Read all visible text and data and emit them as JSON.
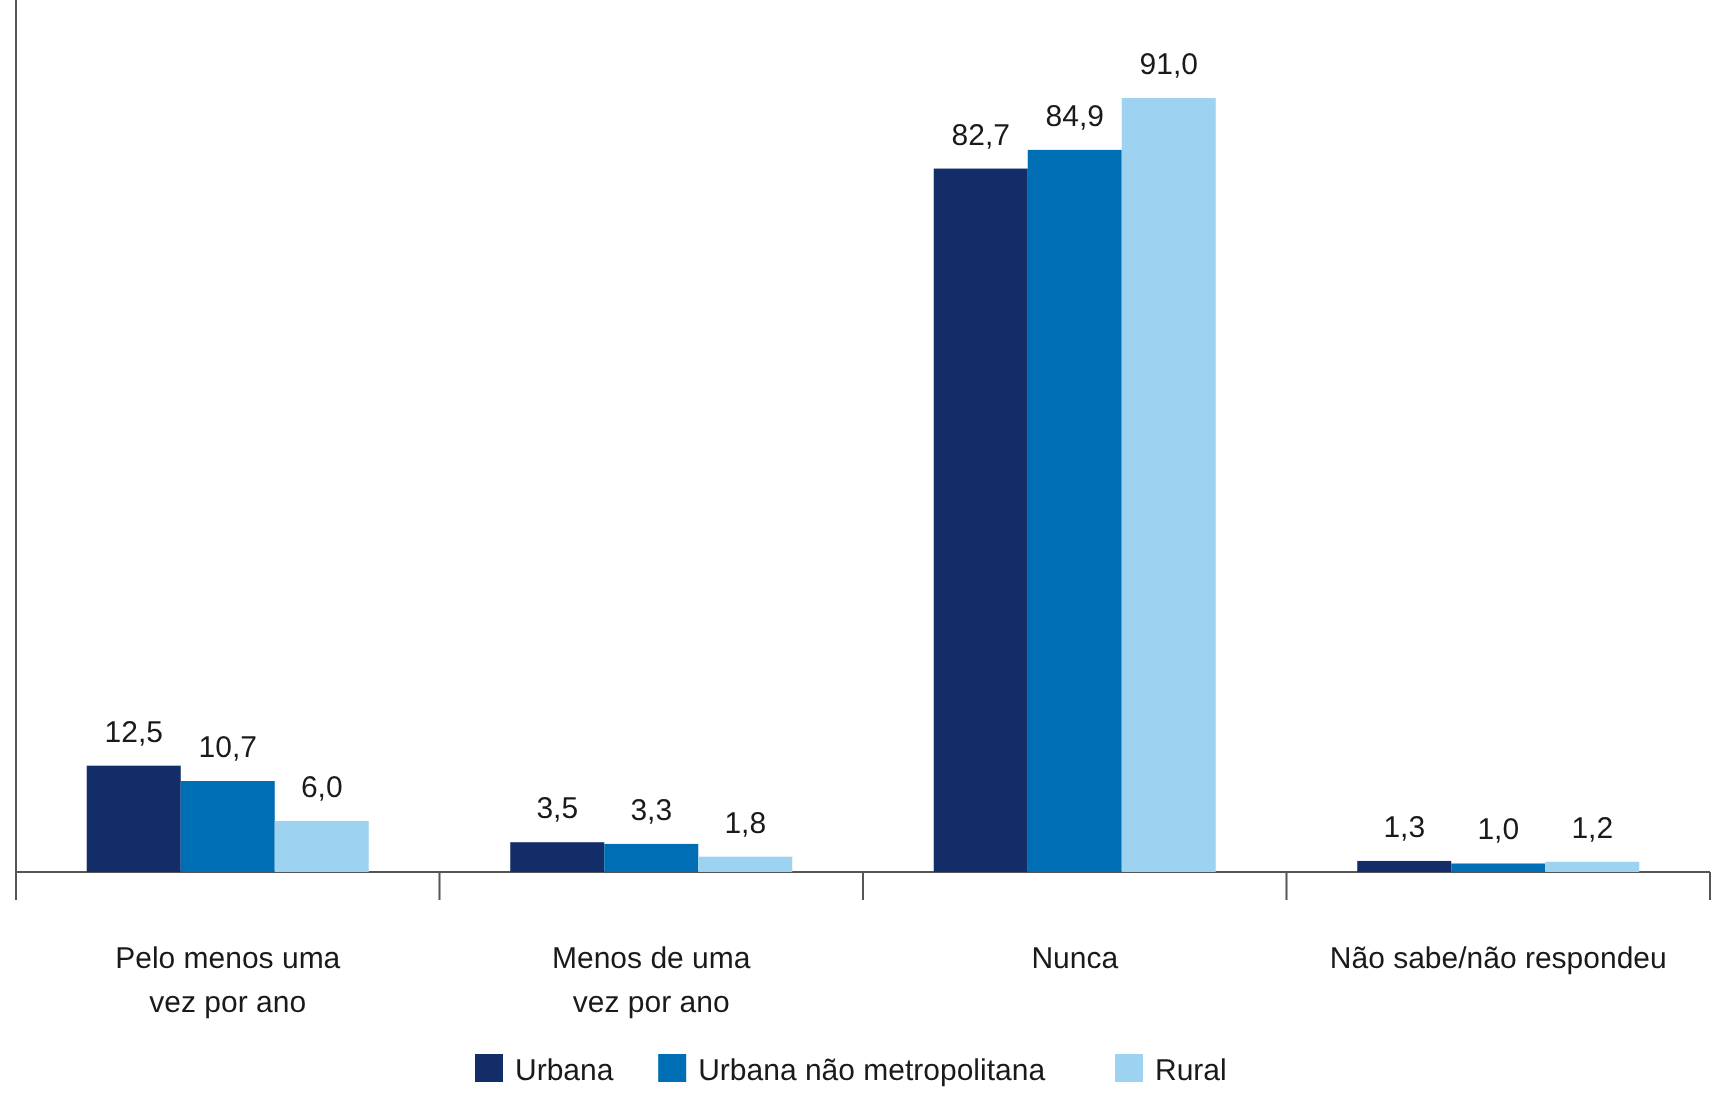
{
  "chart_data": {
    "type": "bar",
    "categories": [
      "Pelo menos uma vez por ano",
      "Menos de uma vez por ano",
      "Nunca",
      "Não sabe/não respondeu"
    ],
    "series": [
      {
        "name": "Urbana",
        "color": "#132d69",
        "values": [
          12.5,
          3.5,
          82.7,
          1.3
        ],
        "value_labels": [
          "12,5",
          "3,5",
          "82,7",
          "1,3"
        ]
      },
      {
        "name": "Urbana não metropolitana",
        "color": "#006eb4",
        "values": [
          10.7,
          3.3,
          84.9,
          1.0
        ],
        "value_labels": [
          "10,7",
          "3,3",
          "84,9",
          "1,0"
        ]
      },
      {
        "name": "Rural",
        "color": "#9dd3f0",
        "values": [
          6.0,
          1.8,
          91.0,
          1.2
        ],
        "value_labels": [
          "6,0",
          "1,8",
          "91,0",
          "1,2"
        ]
      }
    ],
    "legend": "bottom"
  }
}
